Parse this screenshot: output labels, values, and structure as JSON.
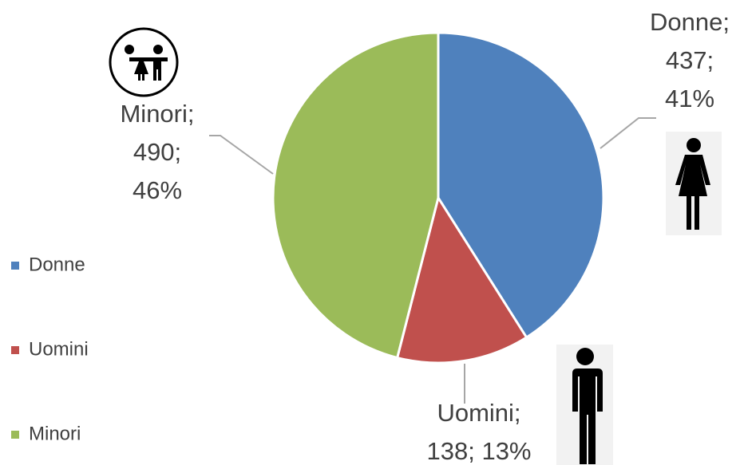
{
  "chart_data": {
    "type": "pie",
    "categories": [
      "Donne",
      "Uomini",
      "Minori"
    ],
    "values": [
      437,
      138,
      490
    ],
    "colors": [
      "#4f81bd",
      "#c0504d",
      "#9bbb59"
    ],
    "data_labels": [
      [
        "Donne;",
        "437;",
        "41%"
      ],
      [
        "Uomini;",
        "138; 13%"
      ],
      [
        "Minori;",
        "490;",
        "46%"
      ]
    ],
    "legend": "left"
  }
}
